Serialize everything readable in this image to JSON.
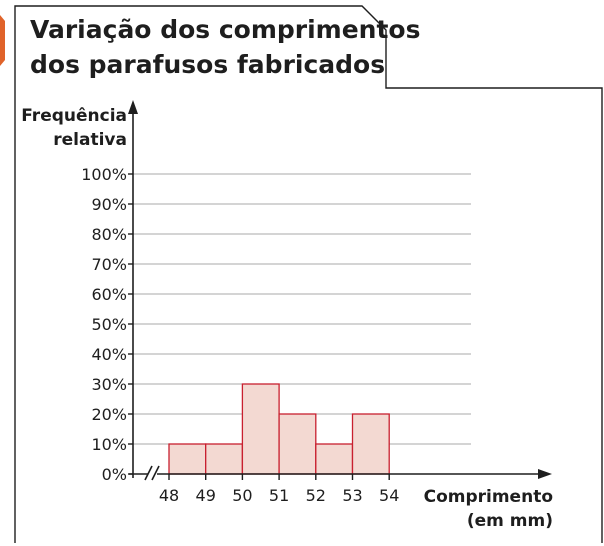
{
  "chart_data": {
    "type": "bar",
    "title_lines": [
      "Variação dos comprimentos",
      "dos parafusos fabricados"
    ],
    "ylabel_lines": [
      "Frequência",
      "relativa"
    ],
    "xlabel_lines": [
      "Comprimento",
      "(em mm)"
    ],
    "x_ticks": [
      "48",
      "49",
      "50",
      "51",
      "52",
      "53",
      "54"
    ],
    "y_ticks": [
      "0%",
      "10%",
      "20%",
      "30%",
      "40%",
      "50%",
      "60%",
      "70%",
      "80%",
      "90%",
      "100%"
    ],
    "bins": [
      {
        "from": 48,
        "to": 49,
        "value": 10
      },
      {
        "from": 49,
        "to": 50,
        "value": 10
      },
      {
        "from": 50,
        "to": 51,
        "value": 30
      },
      {
        "from": 51,
        "to": 52,
        "value": 20
      },
      {
        "from": 52,
        "to": 53,
        "value": 10
      },
      {
        "from": 53,
        "to": 54,
        "value": 20
      }
    ],
    "xlim": [
      48,
      54
    ],
    "ylim": [
      0,
      100
    ],
    "y_unit": "%",
    "grid": true,
    "axis_break": true,
    "colors": {
      "bar_fill": "#f3d9d2",
      "bar_stroke": "#c8202f",
      "tab_accent": "#e0632a",
      "frame": "#1e1e1e",
      "grid": "#a9a9a9"
    }
  }
}
